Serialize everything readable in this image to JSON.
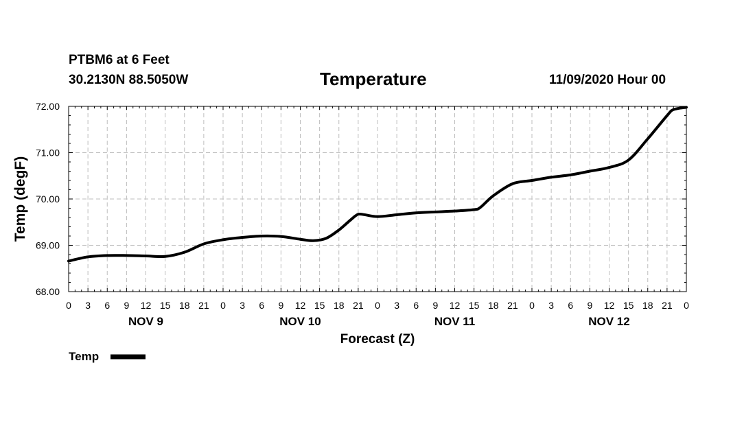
{
  "header": {
    "station": "PTBM6 at 6 Feet",
    "coords": "30.2130N 88.5050W",
    "date": "11/09/2020 Hour 00"
  },
  "chart_data": {
    "type": "line",
    "title": "Temperature",
    "xlabel": "Forecast (Z)",
    "ylabel": "Temp (degF)",
    "ylim": [
      68.0,
      72.0
    ],
    "yticks": [
      "68.00",
      "69.00",
      "70.00",
      "71.00",
      "72.00"
    ],
    "xlim_hours": [
      0,
      96
    ],
    "xticks": [
      {
        "h": 0,
        "label": "0"
      },
      {
        "h": 3,
        "label": "3"
      },
      {
        "h": 6,
        "label": "6"
      },
      {
        "h": 9,
        "label": "9"
      },
      {
        "h": 12,
        "label": "12"
      },
      {
        "h": 15,
        "label": "15"
      },
      {
        "h": 18,
        "label": "18"
      },
      {
        "h": 21,
        "label": "21"
      },
      {
        "h": 24,
        "label": "0"
      },
      {
        "h": 27,
        "label": "3"
      },
      {
        "h": 30,
        "label": "6"
      },
      {
        "h": 33,
        "label": "9"
      },
      {
        "h": 36,
        "label": "12"
      },
      {
        "h": 39,
        "label": "15"
      },
      {
        "h": 42,
        "label": "18"
      },
      {
        "h": 45,
        "label": "21"
      },
      {
        "h": 48,
        "label": "0"
      },
      {
        "h": 51,
        "label": "3"
      },
      {
        "h": 54,
        "label": "6"
      },
      {
        "h": 57,
        "label": "9"
      },
      {
        "h": 60,
        "label": "12"
      },
      {
        "h": 63,
        "label": "15"
      },
      {
        "h": 66,
        "label": "18"
      },
      {
        "h": 69,
        "label": "21"
      },
      {
        "h": 72,
        "label": "0"
      },
      {
        "h": 75,
        "label": "3"
      },
      {
        "h": 78,
        "label": "6"
      },
      {
        "h": 81,
        "label": "9"
      },
      {
        "h": 84,
        "label": "12"
      },
      {
        "h": 87,
        "label": "15"
      },
      {
        "h": 90,
        "label": "18"
      },
      {
        "h": 93,
        "label": "21"
      },
      {
        "h": 96,
        "label": "0"
      }
    ],
    "day_labels": [
      {
        "h": 12,
        "label": "NOV 9"
      },
      {
        "h": 36,
        "label": "NOV 10"
      },
      {
        "h": 60,
        "label": "NOV 11"
      },
      {
        "h": 84,
        "label": "NOV 12"
      }
    ],
    "grid": true,
    "legend": {
      "position": "bottom-left",
      "label": "Temp"
    },
    "series": [
      {
        "name": "Temp",
        "color": "#000000",
        "x": [
          0,
          3,
          6,
          9,
          12,
          15,
          18,
          21,
          24,
          27,
          30,
          33,
          36,
          38,
          40,
          42,
          44,
          45,
          46,
          48,
          51,
          54,
          57,
          60,
          63,
          64,
          66,
          69,
          72,
          75,
          78,
          81,
          84,
          87,
          90,
          93,
          94,
          96
        ],
        "values": [
          68.66,
          68.75,
          68.78,
          68.78,
          68.77,
          68.76,
          68.85,
          69.03,
          69.12,
          69.17,
          69.2,
          69.19,
          69.13,
          69.1,
          69.15,
          69.33,
          69.57,
          69.67,
          69.66,
          69.62,
          69.66,
          69.7,
          69.72,
          69.74,
          69.77,
          69.82,
          70.07,
          70.33,
          70.4,
          70.47,
          70.52,
          70.6,
          70.68,
          70.84,
          71.3,
          71.8,
          71.93,
          71.98
        ]
      }
    ]
  }
}
